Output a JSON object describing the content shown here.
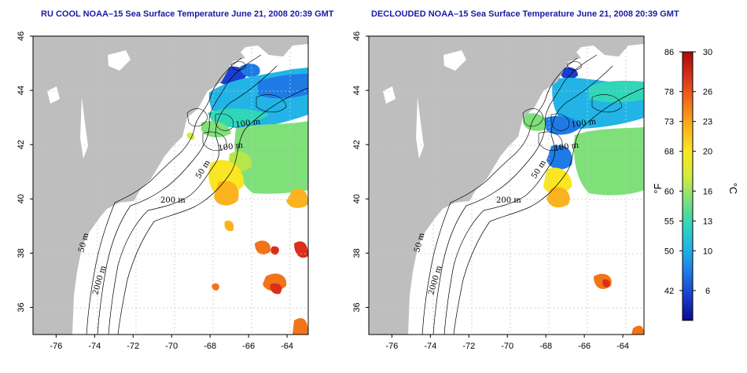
{
  "panels": [
    {
      "title": "RU COOL NOAA–15 Sea Surface Temperature June 21, 2008 20:39 GMT"
    },
    {
      "title": "DECLOUDED NOAA–15 Sea Surface Temperature June 21, 2008 20:39 GMT"
    }
  ],
  "map": {
    "lon_ticks": [
      "-76",
      "-74",
      "-72",
      "-70",
      "-68",
      "-66",
      "-64"
    ],
    "lat_ticks": [
      "36",
      "38",
      "40",
      "42",
      "44",
      "46"
    ],
    "lon_range": [
      -77.2,
      -62.9
    ],
    "lat_range": [
      35.0,
      46.0
    ],
    "land_color": "#bebebe",
    "isobaths": [
      "50 m",
      "100 m",
      "200 m",
      "2000 m"
    ]
  },
  "colorbar": {
    "fahrenheit_ticks": [
      "86",
      "78",
      "73",
      "68",
      "60",
      "55",
      "50",
      "42"
    ],
    "celsius_ticks": [
      "30",
      "26",
      "23",
      "20",
      "16",
      "13",
      "10",
      "6"
    ],
    "range_c": [
      3,
      30
    ],
    "left_unit": "°F",
    "right_unit": "°C",
    "colors": [
      "#0a0a8c",
      "#1a3cd0",
      "#1e7be6",
      "#22b4e6",
      "#31d6b8",
      "#7fe07a",
      "#d6ea3a",
      "#fbe622",
      "#fbb21c",
      "#f27418",
      "#d8301a",
      "#a80a0a"
    ]
  }
}
